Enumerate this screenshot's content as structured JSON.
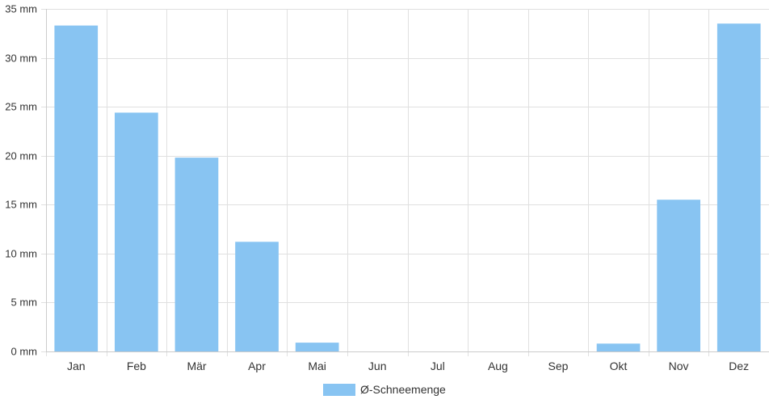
{
  "chart_data": {
    "type": "bar",
    "title": "",
    "xlabel": "",
    "ylabel": "",
    "y_unit": "mm",
    "ylim": [
      0,
      35
    ],
    "yticks": [
      0,
      5,
      10,
      15,
      20,
      25,
      30,
      35
    ],
    "grid": true,
    "legend_position": "bottom",
    "bar_color": "#88c4f2",
    "categories": [
      "Jan",
      "Feb",
      "Mär",
      "Apr",
      "Mai",
      "Jun",
      "Jul",
      "Aug",
      "Sep",
      "Okt",
      "Nov",
      "Dez"
    ],
    "series": [
      {
        "name": "Ø-Schneemenge",
        "values": [
          33.3,
          24.4,
          19.8,
          11.2,
          0.9,
          0,
          0,
          0,
          0,
          0.8,
          15.5,
          33.5
        ]
      }
    ]
  }
}
